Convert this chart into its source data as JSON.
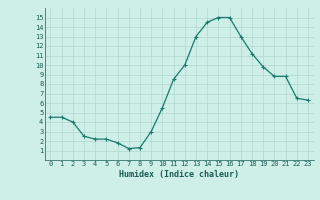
{
  "x": [
    0,
    1,
    2,
    3,
    4,
    5,
    6,
    7,
    8,
    9,
    10,
    11,
    12,
    13,
    14,
    15,
    16,
    17,
    18,
    19,
    20,
    21,
    22,
    23
  ],
  "y": [
    4.5,
    4.5,
    4.0,
    2.5,
    2.2,
    2.2,
    1.8,
    1.2,
    1.3,
    3.0,
    5.5,
    8.5,
    10.0,
    13.0,
    14.5,
    15.0,
    15.0,
    13.0,
    11.2,
    9.8,
    8.8,
    8.8,
    6.5,
    6.3
  ],
  "line_color": "#1a7a6e",
  "marker": "+",
  "marker_size": 3,
  "linewidth": 0.9,
  "bg_color": "#ceeee8",
  "grid_color": "#b0d8d0",
  "xlabel": "Humidex (Indice chaleur)",
  "xlabel_fontsize": 6,
  "xlabel_color": "#1a5c55",
  "tick_color": "#1a5c55",
  "tick_fontsize": 5,
  "xlim": [
    -0.5,
    23.5
  ],
  "ylim": [
    0,
    16
  ],
  "yticks": [
    1,
    2,
    3,
    4,
    5,
    6,
    7,
    8,
    9,
    10,
    11,
    12,
    13,
    14,
    15
  ],
  "xticks": [
    0,
    1,
    2,
    3,
    4,
    5,
    6,
    7,
    8,
    9,
    10,
    11,
    12,
    13,
    14,
    15,
    16,
    17,
    18,
    19,
    20,
    21,
    22,
    23
  ]
}
